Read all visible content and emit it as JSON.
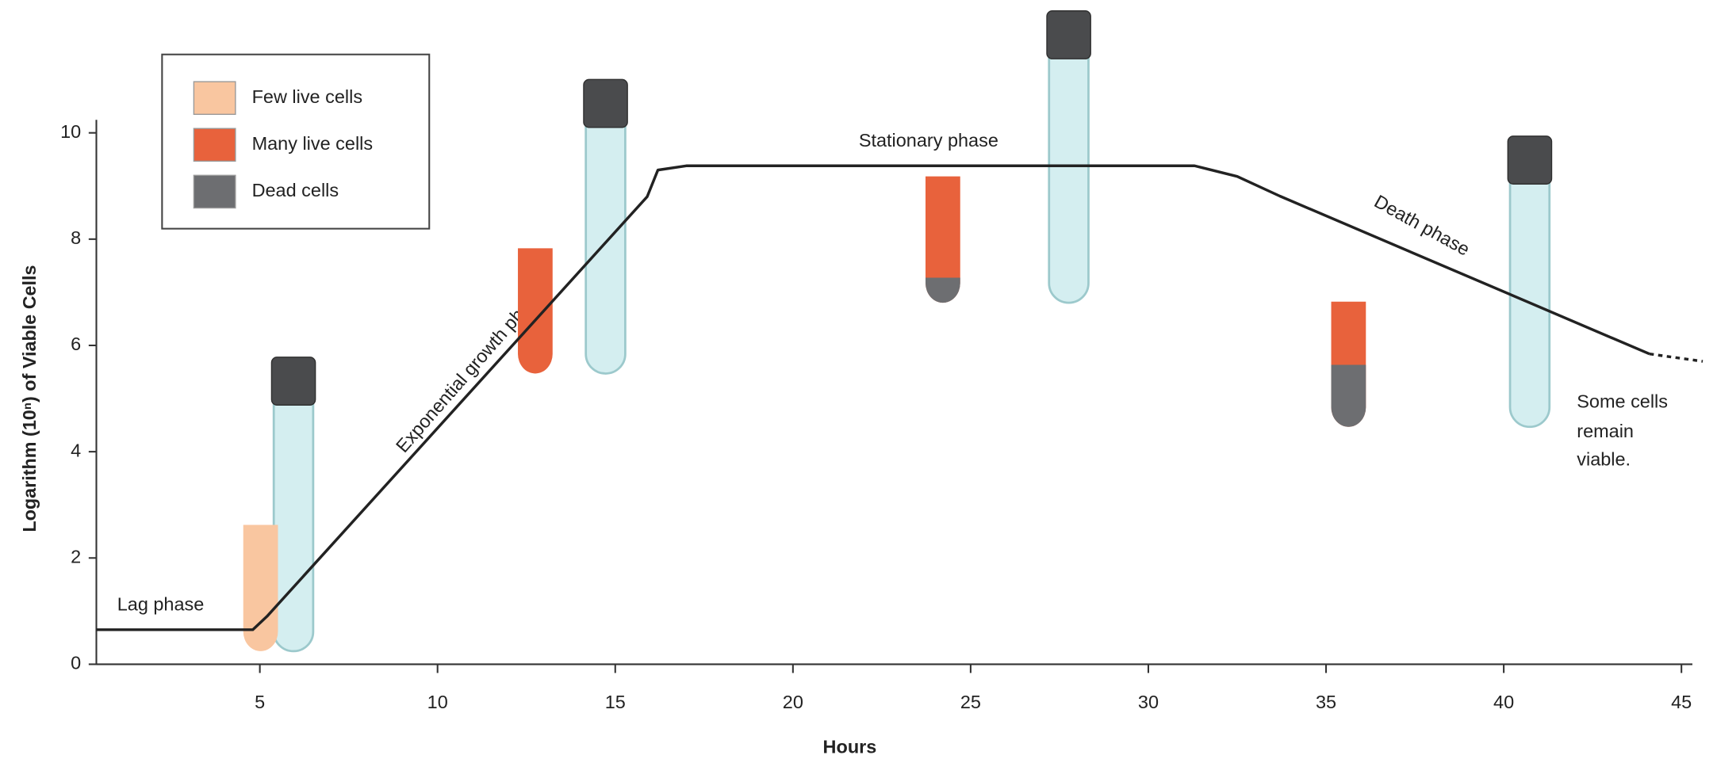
{
  "chart_data": {
    "type": "line",
    "x_label": "Hours",
    "y_label": "Logarithm (10ⁿ) of Viable Cells",
    "x": [
      0.4,
      4.8,
      5.2,
      15.9,
      16.2,
      17,
      31.3,
      32.5,
      33.7,
      44.1,
      45.6
    ],
    "values": [
      0.65,
      0.65,
      0.9,
      8.8,
      9.3,
      9.38,
      9.38,
      9.18,
      8.81,
      5.84,
      5.7
    ],
    "color": "#222222",
    "xlim": [
      0.4,
      45.6
    ],
    "xticks": [
      5,
      10,
      15,
      20,
      25,
      30,
      35,
      40,
      45
    ],
    "ylim": [
      0,
      10
    ],
    "yticks": [
      0,
      2,
      4,
      6,
      8,
      10
    ],
    "legend": [
      {
        "label": "Few live cells",
        "color": "#f9c6a0"
      },
      {
        "label": "Many live cells",
        "color": "#e8623c"
      },
      {
        "label": "Dead cells",
        "color": "#6d6e71"
      }
    ],
    "annotations": [
      "Lag phase",
      "Exponential growth phase",
      "Stationary phase",
      "Death phase"
    ],
    "note_lines": [
      "Some cells",
      "remain",
      "viable."
    ]
  }
}
